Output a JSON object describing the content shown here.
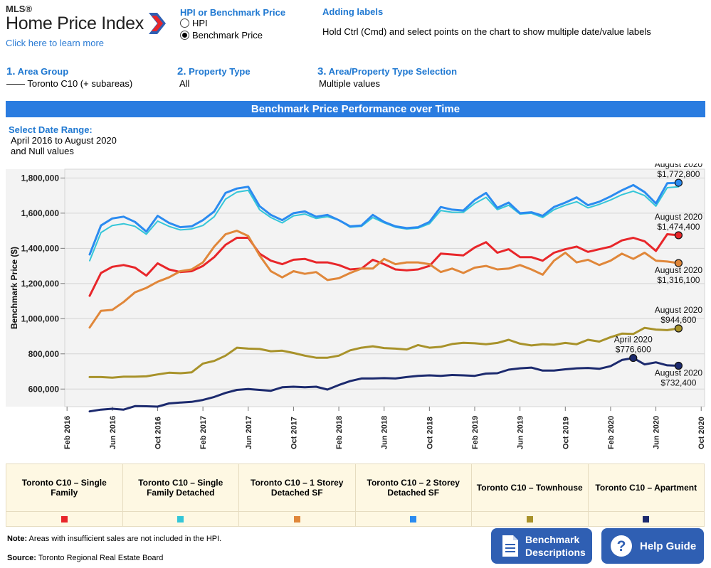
{
  "header": {
    "logo_super": "MLS®",
    "logo_main": "Home Price Index",
    "logo_link": "Click here to learn more",
    "radio_title": "HPI or Benchmark Price",
    "radio_options": [
      {
        "label": "HPI",
        "selected": false
      },
      {
        "label": "Benchmark Price",
        "selected": true
      }
    ],
    "labels_title": "Adding labels",
    "labels_text": "Hold Ctrl (Cmd) and select points on the chart to show multiple date/value labels"
  },
  "steps": [
    {
      "num": "1.",
      "title": "Area Group",
      "value": "—— Toronto C10 (+ subareas)"
    },
    {
      "num": "2.",
      "title": "Property Type",
      "value": "All"
    },
    {
      "num": "3.",
      "title": "Area/Property Type Selection",
      "value": "Multiple values"
    }
  ],
  "banner": "Benchmark Price Performance over Time",
  "date_range": {
    "title": "Select Date Range:",
    "line1": "April 2016 to August 2020",
    "line2": "and Null values"
  },
  "footer": {
    "note_label": "Note:",
    "note_text": " Areas with insufficient sales are not included in the HPI.",
    "source_label": "Source:",
    "source_text": " Toronto Regional Real Estate Board",
    "btn_descriptions_line1": "Benchmark",
    "btn_descriptions_line2": "Descriptions",
    "btn_help": "Help Guide"
  },
  "colors": {
    "single_family": "#e8262a",
    "single_family_detached": "#34c6d8",
    "one_storey": "#e0873a",
    "two_storey": "#2b8bf0",
    "townhouse": "#a8922a",
    "apartment": "#1c2a6e",
    "accent": "#1f78d1"
  },
  "chart_data": {
    "type": "line",
    "ylabel": "Benchmark Price ($)",
    "xlabel": "",
    "ylim": [
      500000,
      1850000
    ],
    "yticks": [
      600000,
      800000,
      1000000,
      1200000,
      1400000,
      1600000,
      1800000
    ],
    "ytick_labels": [
      "600,000",
      "800,000",
      "1,000,000",
      "1,200,000",
      "1,400,000",
      "1,600,000",
      "1,800,000"
    ],
    "xticks": [
      "Feb 2016",
      "Jun 2016",
      "Oct 2016",
      "Feb 2017",
      "Jun 2017",
      "Oct 2017",
      "Feb 2018",
      "Jun 2018",
      "Oct 2018",
      "Feb 2019",
      "Jun 2019",
      "Oct 2019",
      "Feb 2020",
      "Jun 2020",
      "Oct 2020"
    ],
    "x_start": "2016-04",
    "grid": true,
    "series": [
      {
        "name": "Toronto C10 – Single Family",
        "color": "#e8262a",
        "values": [
          1130000,
          1260000,
          1295000,
          1305000,
          1290000,
          1245000,
          1315000,
          1280000,
          1265000,
          1270000,
          1300000,
          1350000,
          1420000,
          1460000,
          1460000,
          1370000,
          1330000,
          1310000,
          1335000,
          1340000,
          1320000,
          1320000,
          1305000,
          1280000,
          1285000,
          1335000,
          1310000,
          1280000,
          1275000,
          1280000,
          1300000,
          1370000,
          1365000,
          1360000,
          1405000,
          1435000,
          1375000,
          1395000,
          1350000,
          1350000,
          1330000,
          1375000,
          1395000,
          1410000,
          1380000,
          1395000,
          1410000,
          1445000,
          1460000,
          1440000,
          1385000,
          1480000,
          1474400
        ]
      },
      {
        "name": "Toronto C10 – Single Family Detached",
        "color": "#34c6d8",
        "values": [
          1330000,
          1490000,
          1530000,
          1540000,
          1525000,
          1480000,
          1555000,
          1525000,
          1505000,
          1510000,
          1530000,
          1580000,
          1680000,
          1720000,
          1730000,
          1620000,
          1575000,
          1545000,
          1585000,
          1595000,
          1570000,
          1580000,
          1560000,
          1520000,
          1525000,
          1575000,
          1545000,
          1520000,
          1510000,
          1515000,
          1540000,
          1615000,
          1605000,
          1605000,
          1655000,
          1690000,
          1620000,
          1645000,
          1595000,
          1600000,
          1575000,
          1620000,
          1645000,
          1665000,
          1630000,
          1650000,
          1675000,
          1705000,
          1725000,
          1700000,
          1640000,
          1745000,
          1750000
        ]
      },
      {
        "name": "Toronto C10 – 1 Storey Detached SF",
        "color": "#e0873a",
        "values": [
          950000,
          1045000,
          1050000,
          1095000,
          1150000,
          1175000,
          1210000,
          1235000,
          1270000,
          1280000,
          1320000,
          1410000,
          1480000,
          1500000,
          1470000,
          1360000,
          1270000,
          1235000,
          1270000,
          1255000,
          1265000,
          1220000,
          1230000,
          1260000,
          1285000,
          1285000,
          1340000,
          1310000,
          1320000,
          1320000,
          1310000,
          1265000,
          1285000,
          1260000,
          1290000,
          1300000,
          1280000,
          1285000,
          1305000,
          1280000,
          1250000,
          1330000,
          1375000,
          1320000,
          1335000,
          1305000,
          1330000,
          1370000,
          1340000,
          1375000,
          1330000,
          1325000,
          1316100
        ]
      },
      {
        "name": "Toronto C10 – 2 Storey Detached SF",
        "color": "#2b8bf0",
        "values": [
          1365000,
          1530000,
          1570000,
          1580000,
          1550000,
          1495000,
          1585000,
          1545000,
          1520000,
          1525000,
          1560000,
          1610000,
          1715000,
          1740000,
          1750000,
          1640000,
          1590000,
          1560000,
          1600000,
          1610000,
          1580000,
          1590000,
          1560000,
          1525000,
          1530000,
          1590000,
          1550000,
          1525000,
          1515000,
          1520000,
          1550000,
          1635000,
          1620000,
          1615000,
          1675000,
          1715000,
          1630000,
          1660000,
          1600000,
          1605000,
          1585000,
          1635000,
          1660000,
          1690000,
          1645000,
          1665000,
          1695000,
          1730000,
          1760000,
          1720000,
          1655000,
          1770000,
          1772800
        ]
      },
      {
        "name": "Toronto C10 – Townhouse",
        "color": "#a8922a",
        "values": [
          668000,
          668000,
          665000,
          670000,
          670000,
          672000,
          683000,
          693000,
          690000,
          695000,
          745000,
          760000,
          790000,
          835000,
          830000,
          828000,
          815000,
          818000,
          805000,
          790000,
          778000,
          778000,
          790000,
          820000,
          835000,
          843000,
          833000,
          830000,
          825000,
          850000,
          835000,
          840000,
          856000,
          863000,
          860000,
          855000,
          862000,
          880000,
          858000,
          848000,
          855000,
          852000,
          862000,
          855000,
          880000,
          870000,
          895000,
          915000,
          913000,
          948000,
          938000,
          935000,
          944600
        ]
      },
      {
        "name": "Toronto C10 – Apartment",
        "color": "#1c2a6e",
        "values": [
          473000,
          483000,
          488000,
          483000,
          503000,
          502000,
          500000,
          518000,
          523000,
          527000,
          538000,
          555000,
          578000,
          595000,
          600000,
          595000,
          590000,
          610000,
          613000,
          610000,
          613000,
          597000,
          623000,
          645000,
          660000,
          660000,
          662000,
          660000,
          668000,
          675000,
          678000,
          675000,
          680000,
          678000,
          675000,
          688000,
          690000,
          710000,
          718000,
          722000,
          705000,
          705000,
          712000,
          718000,
          720000,
          715000,
          730000,
          765000,
          776600,
          740000,
          752000,
          735000,
          732400
        ]
      }
    ],
    "annotations": [
      {
        "date": "August 2020",
        "value": "$1,772,800",
        "series": 3,
        "index": 52,
        "pos": "above"
      },
      {
        "date": "August 2020",
        "value": "$1,474,400",
        "series": 0,
        "index": 52,
        "pos": "above"
      },
      {
        "date": "August 2020",
        "value": "$1,316,100",
        "series": 2,
        "index": 52,
        "pos": "below"
      },
      {
        "date": "August 2020",
        "value": "$944,600",
        "series": 4,
        "index": 52,
        "pos": "above"
      },
      {
        "date": "April 2020",
        "value": "$776,600",
        "series": 5,
        "index": 48,
        "pos": "above"
      },
      {
        "date": "August 2020",
        "value": "$732,400",
        "series": 5,
        "index": 52,
        "pos": "below"
      }
    ]
  }
}
